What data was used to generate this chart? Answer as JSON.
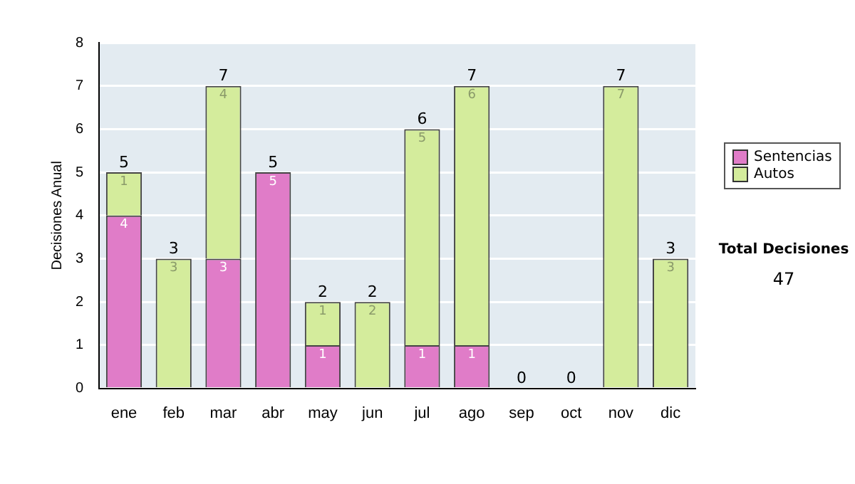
{
  "chart_data": {
    "type": "bar",
    "stacked": true,
    "ylabel": "Decisiones Anual",
    "categories": [
      "ene",
      "feb",
      "mar",
      "abr",
      "may",
      "jun",
      "jul",
      "ago",
      "sep",
      "oct",
      "nov",
      "dic"
    ],
    "series": [
      {
        "name": "Sentencias",
        "color": "#e07cc8",
        "values": [
          4,
          0,
          3,
          5,
          1,
          0,
          1,
          1,
          0,
          0,
          0,
          0
        ],
        "value_labels": [
          "4",
          null,
          "3",
          "5",
          "1",
          null,
          "1",
          "1",
          null,
          null,
          null,
          null
        ]
      },
      {
        "name": "Autos",
        "color": "#d4ec9c",
        "values": [
          1,
          3,
          4,
          0,
          1,
          2,
          5,
          6,
          0,
          0,
          7,
          3
        ],
        "value_labels": [
          "1",
          "3",
          "4",
          null,
          "1",
          "2",
          "5",
          "6",
          null,
          null,
          "7",
          "3"
        ]
      }
    ],
    "totals": [
      "5",
      "3",
      "7",
      "5",
      "2",
      "2",
      "6",
      "7",
      "0",
      "0",
      "7",
      "3"
    ],
    "ylim": [
      0,
      8
    ],
    "yticks": [
      0,
      1,
      2,
      3,
      4,
      5,
      6,
      7,
      8
    ],
    "grid": "y",
    "legend": "right",
    "annotations": [
      "Total Decisiones",
      "47"
    ]
  }
}
